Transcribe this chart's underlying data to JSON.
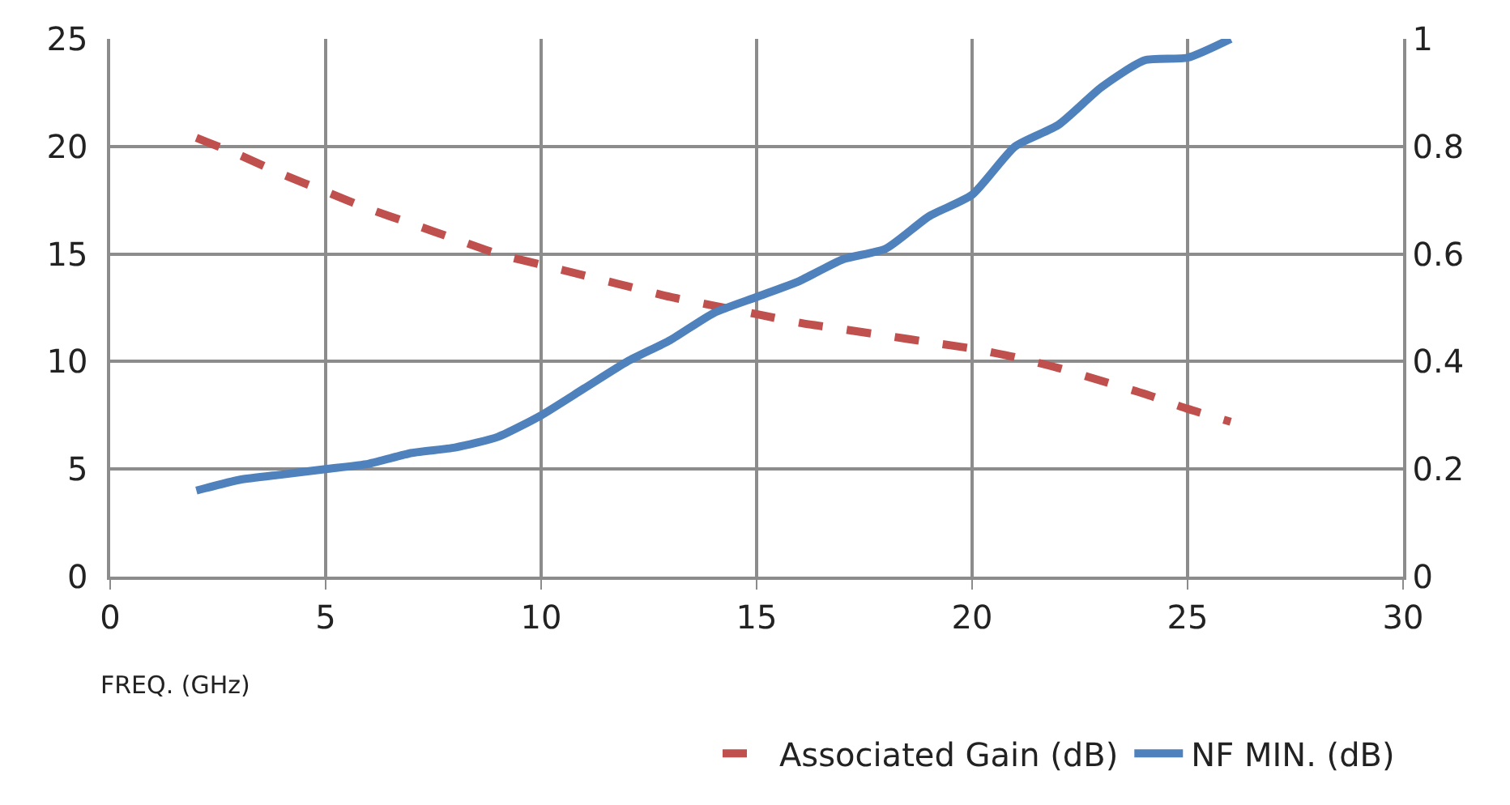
{
  "chart_data": {
    "type": "line",
    "xlabel": "FREQ. (GHz)",
    "x": [
      2,
      3,
      4,
      5,
      6,
      7,
      8,
      9,
      10,
      11,
      12,
      13,
      14,
      15,
      16,
      17,
      18,
      19,
      20,
      21,
      22,
      23,
      24,
      25,
      26
    ],
    "series": [
      {
        "name": "Associated Gain (dB)",
        "color": "#c0504d",
        "line_style": "dashed",
        "values": [
          20.4,
          19.6,
          18.7,
          17.9,
          17.1,
          16.4,
          15.7,
          15.0,
          14.5,
          14.0,
          13.5,
          13.0,
          12.6,
          12.2,
          11.8,
          11.5,
          11.2,
          10.9,
          10.6,
          10.2,
          9.7,
          9.1,
          8.5,
          7.8,
          7.2
        ]
      },
      {
        "name": "NF MIN. (dB)",
        "color": "#4f81bd",
        "line_style": "solid",
        "axis": "y2",
        "values": [
          0.16,
          0.18,
          0.19,
          0.2,
          0.21,
          0.23,
          0.24,
          0.26,
          0.3,
          0.35,
          0.4,
          0.44,
          0.49,
          0.52,
          0.55,
          0.59,
          0.61,
          0.67,
          0.71,
          0.8,
          0.84,
          0.91,
          0.96,
          0.965,
          1.0
        ]
      }
    ],
    "xlim": [
      0,
      30
    ],
    "xticks": [
      0,
      5,
      10,
      15,
      20,
      25,
      30
    ],
    "ylim": [
      0,
      25
    ],
    "yticks": [
      0,
      5,
      10,
      15,
      20,
      25
    ],
    "y2lim": [
      0,
      1
    ],
    "y2ticks": [
      0,
      0.2,
      0.4,
      0.6,
      0.8,
      1
    ],
    "grid": true,
    "legend": "bottom right"
  }
}
